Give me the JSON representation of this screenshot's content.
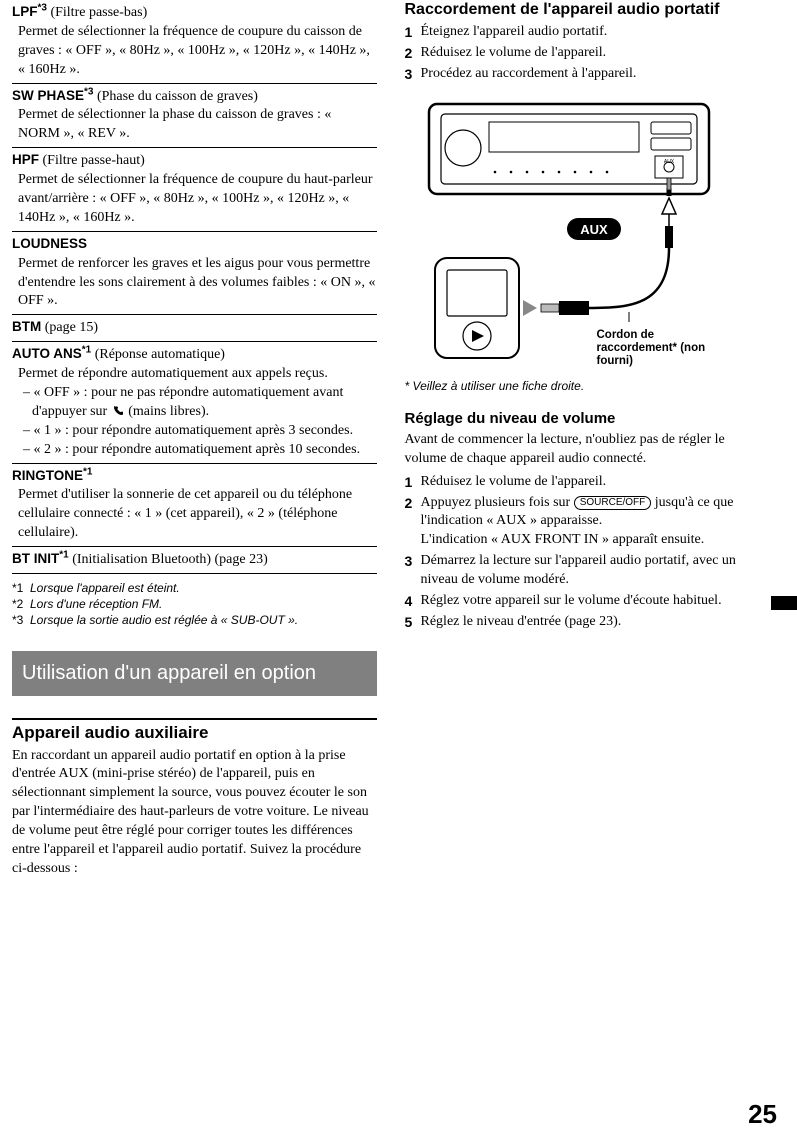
{
  "left": {
    "settings": [
      {
        "title": "LPF",
        "super": "*3",
        "sub": " (Filtre passe-bas)",
        "desc": "Permet de sélectionner la fréquence de coupure du caisson de graves : « OFF », « 80Hz », « 100Hz », « 120Hz », « 140Hz », « 160Hz »."
      },
      {
        "title": "SW PHASE",
        "super": "*3",
        "sub": " (Phase du caisson de graves)",
        "desc": "Permet de sélectionner la phase du caisson de graves : « NORM », « REV »."
      },
      {
        "title": "HPF",
        "super": "",
        "sub": " (Filtre passe-haut)",
        "desc": "Permet de sélectionner la fréquence de coupure du haut-parleur avant/arrière : « OFF », « 80Hz », « 100Hz », « 120Hz », « 140Hz », « 160Hz »."
      },
      {
        "title": "LOUDNESS",
        "super": "",
        "sub": "",
        "desc": "Permet de renforcer les graves et les aigus pour vous permettre d'entendre les sons clairement à des volumes faibles : « ON », « OFF »."
      },
      {
        "title": "BTM",
        "super": "",
        "sub": " (page 15)",
        "desc": ""
      },
      {
        "title": "AUTO ANS",
        "super": "*1",
        "sub": " (Réponse automatique)",
        "desc": "Permet de répondre automatiquement aux appels reçus.",
        "items": [
          "« OFF » : pour ne pas répondre automatiquement avant d'appuyer sur __PHONE__ (mains libres).",
          "« 1 » : pour répondre automatiquement après 3 secondes.",
          "« 2 » : pour répondre automatiquement après 10 secondes."
        ]
      },
      {
        "title": "RINGTONE",
        "super": "*1",
        "sub": "",
        "desc": "Permet d'utiliser la sonnerie de cet appareil ou du téléphone cellulaire connecté : « 1 » (cet appareil), « 2 » (téléphone cellulaire)."
      },
      {
        "title": "BT INIT",
        "super": "*1",
        "sub": " (Initialisation Bluetooth) (page 23)",
        "desc": ""
      }
    ],
    "footnotes": [
      {
        "num": "*1",
        "text": "Lorsque l'appareil est éteint."
      },
      {
        "num": "*2",
        "text": "Lors d'une réception FM."
      },
      {
        "num": "*3",
        "text": "Lorsque la sortie audio est réglée à « SUB-OUT »."
      }
    ],
    "section_bar": "Utilisation d'un appareil en option",
    "aux_heading": "Appareil audio auxiliaire",
    "aux_body": "En raccordant un appareil audio portatif en option à la prise d'entrée AUX (mini-prise stéréo) de l'appareil, puis en sélectionnant simplement la source, vous pouvez écouter le son par l'intermédiaire des haut-parleurs de votre voiture. Le niveau de volume peut être réglé pour corriger toutes les différences entre l'appareil et l'appareil audio portatif. Suivez la procédure ci-dessous :"
  },
  "right": {
    "h_connect": "Raccordement de l'appareil audio portatif",
    "connect_steps": [
      "Éteignez l'appareil audio portatif.",
      "Réduisez le volume de l'appareil.",
      "Procédez au raccordement à l'appareil."
    ],
    "diagram": {
      "aux_badge": "AUX",
      "cord_label": "Cordon de raccordement* (non fourni)"
    },
    "plug_note": "* Veillez à utiliser une fiche droite.",
    "h_volume": "Réglage du niveau de volume",
    "vol_intro": "Avant de commencer la lecture, n'oubliez pas de régler le volume de chaque appareil audio connecté.",
    "source_btn": "SOURCE/OFF",
    "vol_steps": [
      "Réduisez le volume de l'appareil.",
      "Appuyez plusieurs fois sur __BTN__ jusqu'à ce que l'indication « AUX » apparaisse.\nL'indication « AUX FRONT IN » apparaît ensuite.",
      "Démarrez la lecture sur l'appareil audio portatif, avec un niveau de volume modéré.",
      "Réglez votre appareil sur le volume d'écoute habituel.",
      "Réglez le niveau d'entrée (page 23)."
    ]
  },
  "page_number": "25"
}
